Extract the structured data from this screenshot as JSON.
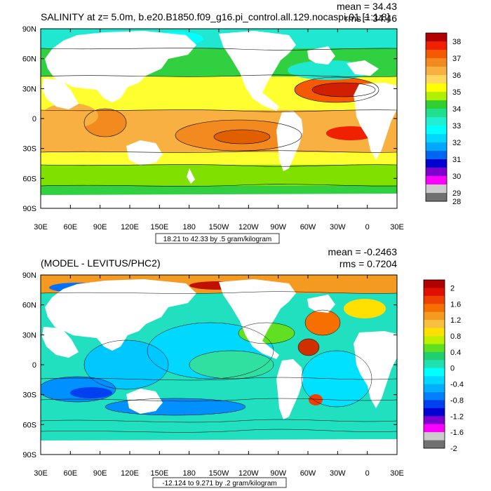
{
  "chart_data": [
    {
      "type": "heatmap",
      "title": "SALINITY at z=   5.0m, b.e20.B1850.f09_g16.pi_control.all.129.nocaspi.01 [1:1:8]",
      "stats": {
        "mean": "mean = 34.43",
        "rms": "rms = 34.46"
      },
      "contour_info": "18.21 to 42.33 by .5 gram/kilogram",
      "x_tick_labels": [
        "30E",
        "60E",
        "90E",
        "120E",
        "150E",
        "180",
        "150W",
        "120W",
        "90W",
        "60W",
        "30W",
        "0",
        "30E"
      ],
      "y_tick_labels": [
        "90N",
        "60N",
        "30N",
        "0",
        "30S",
        "60S",
        "90S"
      ],
      "xlim": [
        30,
        390
      ],
      "ylim": [
        -90,
        90
      ],
      "colorbar_labels": [
        "38",
        "37",
        "36",
        "35",
        "34",
        "33",
        "32",
        "31",
        "30",
        "29",
        "28"
      ],
      "colorbar_colors": [
        "#b00000",
        "#f02000",
        "#f55a00",
        "#f28a20",
        "#f8b040",
        "#ffd860",
        "#ffff00",
        "#b0f000",
        "#30d030",
        "#20e090",
        "#20f0d0",
        "#00ffff",
        "#00d8ff",
        "#00a8ff",
        "#0068f0",
        "#0000d0",
        "#8000d0",
        "#ff00ff",
        "#cccccc",
        "#707070"
      ]
    },
    {
      "type": "heatmap",
      "title": "(MODEL - LEVITUS/PHC2)",
      "stats": {
        "mean": "mean = -0.2463",
        "rms": "rms = 0.7204"
      },
      "contour_info": "-12.124 to 9.271 by .2 gram/kilogram",
      "x_tick_labels": [
        "30E",
        "60E",
        "90E",
        "120E",
        "150E",
        "180",
        "150W",
        "120W",
        "90W",
        "60W",
        "30W",
        "0",
        "30E"
      ],
      "y_tick_labels": [
        "90N",
        "60N",
        "30N",
        "0",
        "30S",
        "60S",
        "90S"
      ],
      "xlim": [
        30,
        390
      ],
      "ylim": [
        -90,
        90
      ],
      "colorbar_labels": [
        "2",
        "1.6",
        "1.2",
        "0.8",
        "0.4",
        "0",
        "-0.4",
        "-0.8",
        "-1.2",
        "-1.6",
        "-2"
      ],
      "colorbar_colors": [
        "#b00000",
        "#e01000",
        "#f04000",
        "#f57000",
        "#f59a20",
        "#f8c040",
        "#ffe000",
        "#c0f000",
        "#60e020",
        "#20d070",
        "#20e0b0",
        "#00ffff",
        "#00d8ff",
        "#00b0ff",
        "#0080ff",
        "#0040f0",
        "#0000d0",
        "#8000d0",
        "#ff00ff",
        "#cccccc",
        "#707070"
      ]
    }
  ]
}
